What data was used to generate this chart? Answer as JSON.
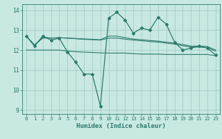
{
  "x": [
    0,
    1,
    2,
    3,
    4,
    5,
    6,
    7,
    8,
    9,
    10,
    11,
    12,
    13,
    14,
    15,
    16,
    17,
    18,
    19,
    20,
    21,
    22,
    23
  ],
  "line_main": [
    12.7,
    12.2,
    12.7,
    12.5,
    12.6,
    11.9,
    11.4,
    10.8,
    10.8,
    9.2,
    13.6,
    13.9,
    13.5,
    12.85,
    13.1,
    13.0,
    13.65,
    13.3,
    12.4,
    12.0,
    12.1,
    12.2,
    12.1,
    11.75
  ],
  "line_upper": [
    12.7,
    12.25,
    12.65,
    12.6,
    12.62,
    12.6,
    12.58,
    12.56,
    12.54,
    12.52,
    12.7,
    12.7,
    12.62,
    12.55,
    12.52,
    12.48,
    12.45,
    12.4,
    12.35,
    12.28,
    12.2,
    12.2,
    12.18,
    12.0
  ],
  "line_mid": [
    12.7,
    12.25,
    12.6,
    12.6,
    12.62,
    12.6,
    12.57,
    12.54,
    12.52,
    12.5,
    12.6,
    12.6,
    12.55,
    12.5,
    12.47,
    12.43,
    12.4,
    12.35,
    12.3,
    12.22,
    12.15,
    12.15,
    12.12,
    11.95
  ],
  "line_lower": [
    12.0,
    12.0,
    12.0,
    12.0,
    12.0,
    11.95,
    11.92,
    11.9,
    11.88,
    11.86,
    11.85,
    11.85,
    11.85,
    11.82,
    11.8,
    11.8,
    11.8,
    11.78,
    11.78,
    11.78,
    11.78,
    11.78,
    11.78,
    11.72
  ],
  "color": "#2a7a6a",
  "bg_color": "#c8e8e2",
  "grid_color": "#9ec8c0",
  "xlabel": "Humidex (Indice chaleur)",
  "ylim": [
    8.8,
    14.3
  ],
  "xlim_min": -0.5,
  "xlim_max": 23.5,
  "yticks": [
    9,
    10,
    11,
    12,
    13,
    14
  ],
  "xticks": [
    0,
    1,
    2,
    3,
    4,
    5,
    6,
    7,
    8,
    9,
    10,
    11,
    12,
    13,
    14,
    15,
    16,
    17,
    18,
    19,
    20,
    21,
    22,
    23
  ]
}
